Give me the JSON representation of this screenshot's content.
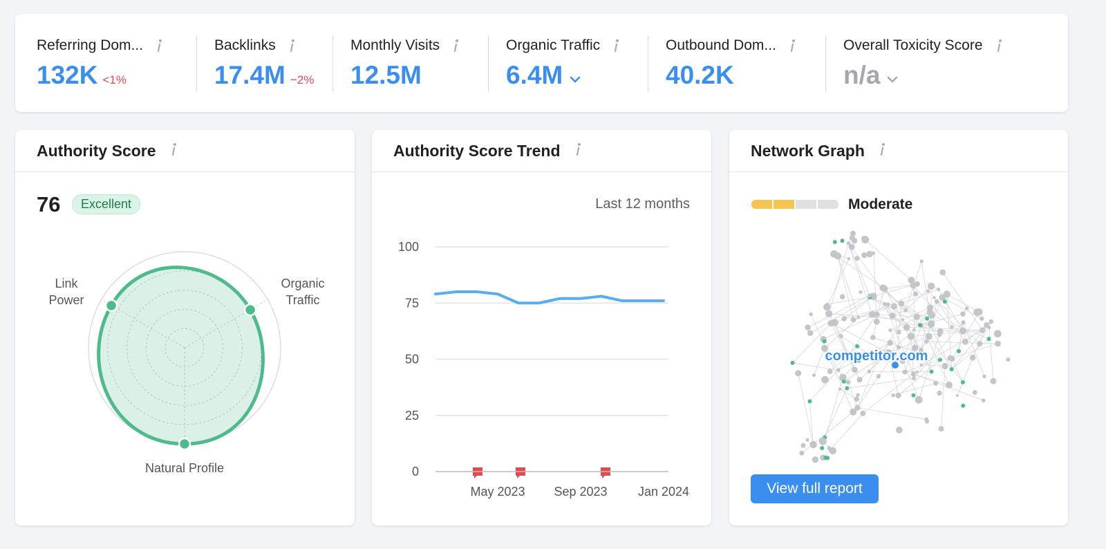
{
  "metrics": [
    {
      "label": "Referring Dom...",
      "value": "132K",
      "change": "<1%",
      "color": "#3a8ef0"
    },
    {
      "label": "Backlinks",
      "value": "17.4M",
      "change": "−2%",
      "color": "#3a8ef0"
    },
    {
      "label": "Monthly Visits",
      "value": "12.5M",
      "color": "#3a8ef0"
    },
    {
      "label": "Organic Traffic",
      "value": "6.4M",
      "dropdown": true,
      "color": "#3a8ef0"
    },
    {
      "label": "Outbound Dom...",
      "value": "40.2K",
      "color": "#3a8ef0"
    },
    {
      "label": "Overall Toxicity Score",
      "value": "n/a",
      "dropdown": true,
      "color": "#a4a7b0"
    }
  ],
  "authority": {
    "score": 76,
    "badge": "Excellent"
  },
  "network": {
    "title": "Network Graph",
    "level": "Moderate",
    "center_label": "competitor.com",
    "button": "View full report"
  },
  "chart_data": [
    {
      "type": "radar",
      "title": "Authority Score",
      "categories": [
        "Link Power",
        "Organic Traffic",
        "Natural Profile"
      ],
      "values": [
        88,
        79,
        100
      ],
      "rlim": [
        0,
        100
      ],
      "color": "#4dbb8a"
    },
    {
      "type": "line",
      "title": "Authority Score Trend",
      "subtitle": "Last 12 months",
      "categories": [
        null,
        null,
        null,
        "May 2023",
        null,
        null,
        null,
        "Sep 2023",
        null,
        null,
        null,
        "Jan 2024"
      ],
      "values": [
        79,
        80,
        80,
        79,
        75,
        75,
        77,
        77,
        78,
        76,
        76,
        76
      ],
      "ylim": [
        0,
        100
      ],
      "yticks": [
        0,
        25,
        50,
        75,
        100
      ],
      "grid": true,
      "color": "#5aacf0"
    }
  ]
}
